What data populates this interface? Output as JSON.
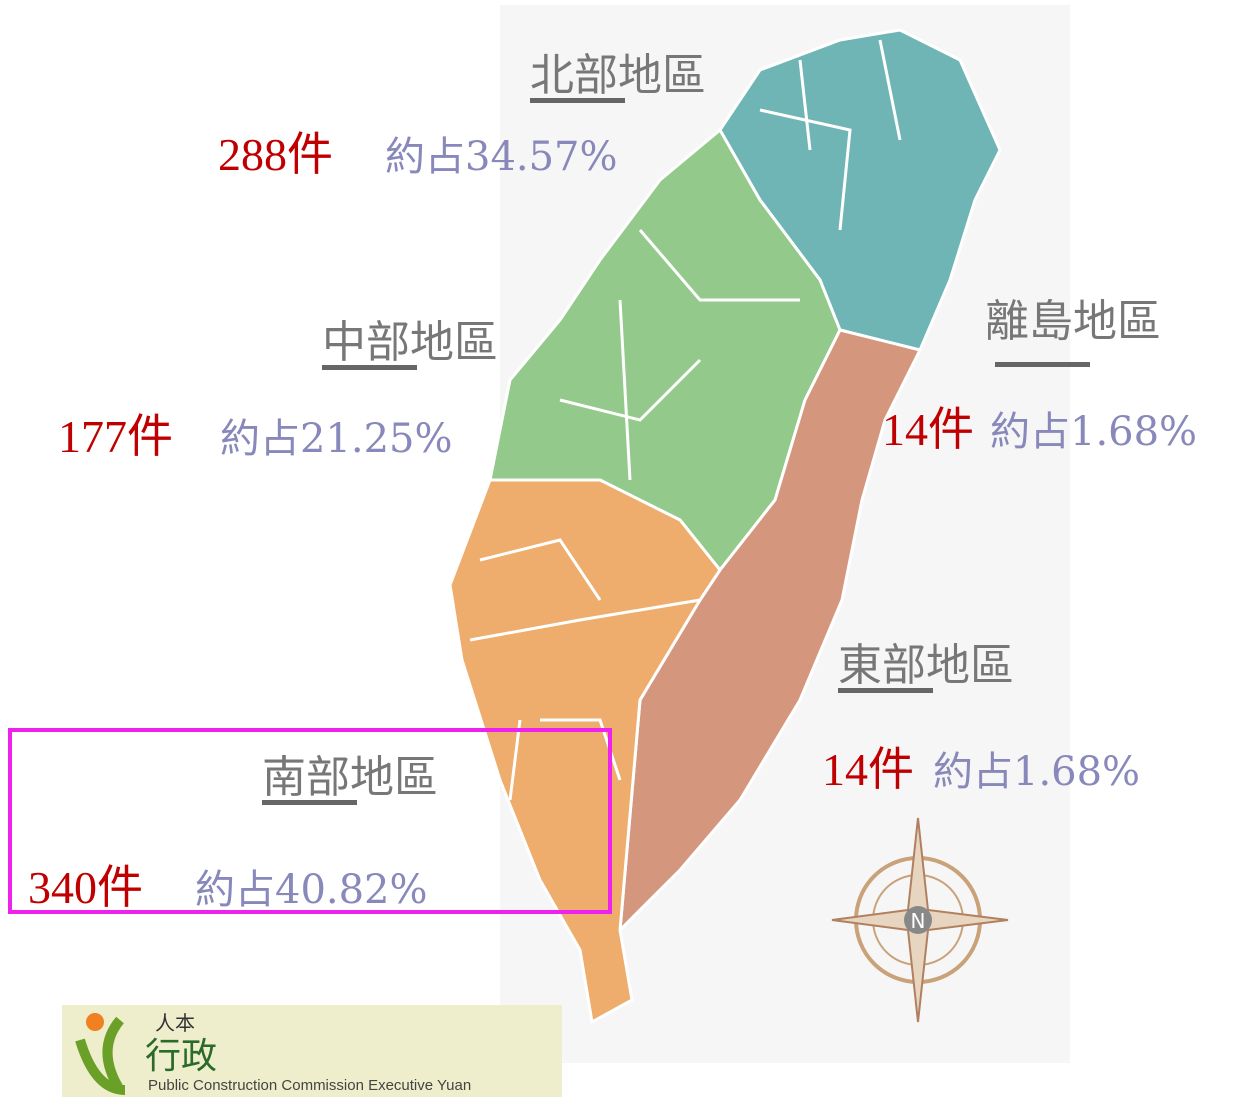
{
  "regions": [
    {
      "name": "北部地區",
      "count": "288件",
      "share": "約占34.57%"
    },
    {
      "name": "中部地區",
      "count": "177件",
      "share": "約占21.25%"
    },
    {
      "name": "離島地區",
      "count": "14件",
      "share": "約占1.68%"
    },
    {
      "name": "東部地區",
      "count": "14件",
      "share": "約占1.68%"
    },
    {
      "name": "南部地區",
      "count": "340件",
      "share": "約占40.82%"
    }
  ],
  "compass": "N",
  "logo": {
    "motto": "人本",
    "org": "行政",
    "english": "Public Construction Commission Executive Yuan"
  }
}
